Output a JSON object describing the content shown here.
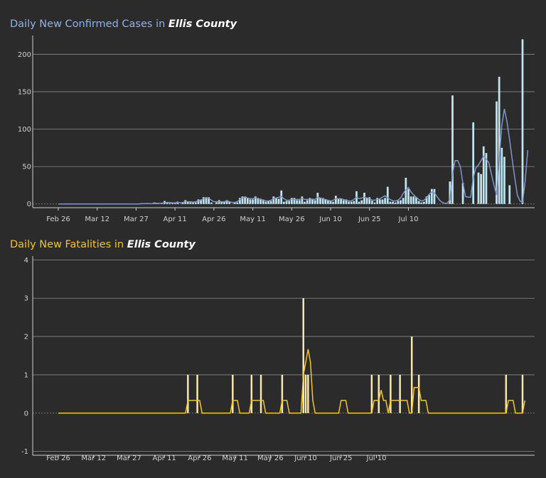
{
  "chart_data": [
    {
      "type": "bar",
      "title_prefix": "Daily New Confirmed Cases in",
      "title_county": "Ellis County",
      "x_ticks": [
        "Feb 26",
        "Mar 12",
        "Mar 27",
        "Apr 11",
        "Apr 26",
        "May 11",
        "May 26",
        "Jun 10",
        "Jun 25",
        "Jul 10"
      ],
      "ylim": [
        -5,
        225
      ],
      "y_ticks": [
        0,
        50,
        100,
        150,
        200
      ],
      "x_start": "Feb 26",
      "values": [
        0,
        0,
        0,
        0,
        0,
        0,
        0,
        0,
        0,
        0,
        0,
        0,
        0,
        0,
        0,
        0,
        0,
        0,
        0,
        0,
        0,
        0,
        0,
        0,
        0,
        0,
        0,
        0,
        0,
        0,
        0,
        0,
        1,
        0,
        1,
        1,
        0,
        2,
        1,
        0,
        1,
        4,
        2,
        1,
        1,
        1,
        3,
        0,
        2,
        5,
        3,
        2,
        2,
        2,
        6,
        6,
        9,
        9,
        9,
        2,
        0,
        2,
        5,
        3,
        3,
        5,
        3,
        0,
        2,
        2,
        8,
        10,
        10,
        8,
        6,
        6,
        10,
        8,
        7,
        6,
        3,
        4,
        4,
        10,
        8,
        7,
        18,
        3,
        4,
        4,
        8,
        8,
        5,
        5,
        10,
        3,
        5,
        8,
        7,
        5,
        15,
        8,
        8,
        6,
        5,
        4,
        3,
        11,
        7,
        7,
        5,
        6,
        3,
        3,
        4,
        17,
        3,
        5,
        15,
        8,
        9,
        4,
        2,
        8,
        6,
        6,
        8,
        23,
        3,
        3,
        2,
        4,
        5,
        8,
        35,
        20,
        10,
        10,
        9,
        4,
        2,
        3,
        10,
        12,
        20,
        20,
        0,
        0,
        0,
        0,
        0,
        30,
        145,
        0,
        0,
        0,
        28,
        0,
        0,
        0,
        109,
        0,
        42,
        40,
        77,
        68,
        0,
        0,
        0,
        137,
        170,
        75,
        63,
        0,
        25,
        0,
        0,
        0,
        0,
        220
      ],
      "trend": [
        0,
        0,
        0,
        0,
        0,
        0,
        0,
        0,
        0,
        0,
        0,
        0,
        0,
        0,
        0,
        0,
        0,
        0,
        0,
        0,
        0,
        0,
        0,
        0,
        0,
        0,
        0,
        0,
        0,
        0,
        0,
        0,
        0.3,
        0.3,
        0.6,
        0.6,
        0.4,
        1,
        1,
        1,
        1,
        2,
        2,
        2,
        1.5,
        1.5,
        2,
        1.5,
        2,
        3,
        3,
        3,
        2.5,
        3,
        4,
        5,
        7,
        8,
        8,
        5,
        3,
        3,
        3,
        3,
        3,
        4,
        3,
        2,
        2,
        3,
        6,
        8,
        9,
        8,
        7,
        7,
        8,
        7,
        6,
        5,
        4,
        4,
        5,
        7,
        8,
        9,
        10,
        7,
        5,
        5,
        6,
        6,
        6,
        6,
        7,
        6,
        6,
        7,
        6,
        6,
        9,
        8,
        7,
        6,
        5,
        4,
        5,
        7,
        7,
        7,
        6,
        5,
        4,
        4,
        6,
        9,
        7,
        8,
        9,
        8,
        7,
        5,
        5,
        6,
        7,
        9,
        11,
        8,
        6,
        4,
        4,
        5,
        8,
        14,
        19,
        22,
        16,
        12,
        9,
        6,
        4,
        5,
        8,
        13,
        16,
        15,
        10,
        5,
        2,
        1,
        1,
        6,
        40,
        58,
        58,
        50,
        28,
        10,
        9,
        9,
        35,
        48,
        52,
        58,
        64,
        60,
        55,
        40,
        25,
        12,
        60,
        105,
        127,
        110,
        86,
        60,
        35,
        12,
        4,
        2,
        30,
        72
      ]
    },
    {
      "type": "bar",
      "title_prefix": "Daily New Fatalities in",
      "title_county": "Ellis County",
      "x_ticks": [
        "Feb 26",
        "Mar 12",
        "Mar 27",
        "Apr 11",
        "Apr 26",
        "May 11",
        "May 26",
        "Jun 10",
        "Jun 25",
        "Jul 10"
      ],
      "ylim": [
        -1.1,
        4.1
      ],
      "y_ticks": [
        -1,
        0,
        1,
        2,
        3,
        4
      ],
      "x_start": "Feb 26",
      "values": [
        0,
        0,
        0,
        0,
        0,
        0,
        0,
        0,
        0,
        0,
        0,
        0,
        0,
        0,
        0,
        0,
        0,
        0,
        0,
        0,
        0,
        0,
        0,
        0,
        0,
        0,
        0,
        0,
        0,
        0,
        0,
        0,
        0,
        0,
        0,
        0,
        0,
        0,
        0,
        0,
        0,
        0,
        0,
        0,
        0,
        0,
        0,
        0,
        0,
        0,
        0,
        0,
        0,
        0,
        0,
        1,
        0,
        0,
        0,
        1,
        0,
        0,
        0,
        0,
        0,
        0,
        0,
        0,
        0,
        0,
        0,
        0,
        0,
        0,
        1,
        0,
        0,
        0,
        0,
        0,
        0,
        0,
        1,
        0,
        0,
        0,
        1,
        0,
        0,
        0,
        0,
        0,
        0,
        0,
        0,
        1,
        0,
        0,
        0,
        0,
        0,
        0,
        0,
        0,
        3,
        1,
        1,
        0,
        0,
        0,
        0,
        0,
        0,
        0,
        0,
        0,
        0,
        0,
        0,
        0,
        0,
        0,
        0,
        0,
        0,
        0,
        0,
        0,
        0,
        0,
        0,
        0,
        0,
        1,
        0,
        0,
        1,
        0,
        0,
        0,
        0,
        1,
        0,
        0,
        0,
        1,
        0,
        0,
        0,
        0,
        2,
        0,
        0,
        1,
        0,
        0,
        0,
        0,
        0,
        0,
        0,
        0,
        0,
        0,
        0,
        0,
        0,
        0,
        0,
        0,
        0,
        0,
        0,
        0,
        0,
        0,
        0,
        0,
        0,
        0,
        0,
        0,
        0,
        0,
        0,
        0,
        0,
        0,
        0,
        0,
        1,
        0,
        0,
        0,
        0,
        0,
        0,
        1
      ],
      "trend": [
        0,
        0,
        0,
        0,
        0,
        0,
        0,
        0,
        0,
        0,
        0,
        0,
        0,
        0,
        0,
        0,
        0,
        0,
        0,
        0,
        0,
        0,
        0,
        0,
        0,
        0,
        0,
        0,
        0,
        0,
        0,
        0,
        0,
        0,
        0,
        0,
        0,
        0,
        0,
        0,
        0,
        0,
        0,
        0,
        0,
        0,
        0,
        0,
        0,
        0,
        0,
        0,
        0,
        0,
        0,
        0.33,
        0.33,
        0.33,
        0.33,
        0.33,
        0.33,
        0,
        0,
        0,
        0,
        0,
        0,
        0,
        0,
        0,
        0,
        0,
        0,
        0,
        0.33,
        0.33,
        0.33,
        0,
        0,
        0,
        0,
        0,
        0.33,
        0.33,
        0.33,
        0.33,
        0.33,
        0.33,
        0,
        0,
        0,
        0,
        0,
        0,
        0,
        0.33,
        0.33,
        0.33,
        0,
        0,
        0,
        0,
        0,
        0,
        1,
        1.33,
        1.67,
        1.33,
        0.33,
        0,
        0,
        0,
        0,
        0,
        0,
        0,
        0,
        0,
        0,
        0,
        0.33,
        0.33,
        0.33,
        0,
        0,
        0,
        0,
        0,
        0,
        0,
        0,
        0,
        0,
        0,
        0.33,
        0.33,
        0.33,
        0.6,
        0.33,
        0.33,
        0,
        0.33,
        0.33,
        0.33,
        0.33,
        0.33,
        0.33,
        0.33,
        0.33,
        0,
        0,
        0.67,
        0.67,
        0.67,
        0.33,
        0.33,
        0.33,
        0,
        0,
        0,
        0,
        0,
        0,
        0,
        0,
        0,
        0,
        0,
        0,
        0,
        0,
        0,
        0,
        0,
        0,
        0,
        0,
        0,
        0,
        0,
        0,
        0,
        0,
        0,
        0,
        0,
        0,
        0,
        0,
        0,
        0,
        0.33,
        0.33,
        0.33,
        0,
        0,
        0,
        0,
        0.33
      ]
    }
  ],
  "colors": {
    "background": "#2b2b2b",
    "cases_bar": "#bfe6f0",
    "cases_trend": "#7f97c8",
    "cases_title": "#8fb3e6",
    "cases_axis_text": "#8fb3e6",
    "fatal_bar": "#f7e7b0",
    "fatal_trend": "#f3c623",
    "fatal_title": "#f3c623",
    "fatal_axis_text": "#f3c623",
    "grid": "#8a8a8a"
  }
}
